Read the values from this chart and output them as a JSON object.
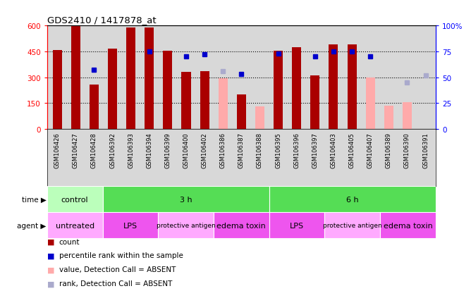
{
  "title": "GDS2410 / 1417878_at",
  "samples": [
    "GSM106426",
    "GSM106427",
    "GSM106428",
    "GSM106392",
    "GSM106393",
    "GSM106394",
    "GSM106399",
    "GSM106400",
    "GSM106402",
    "GSM106386",
    "GSM106387",
    "GSM106388",
    "GSM106395",
    "GSM106396",
    "GSM106397",
    "GSM106403",
    "GSM106405",
    "GSM106407",
    "GSM106389",
    "GSM106390",
    "GSM106391"
  ],
  "bar_values": [
    460,
    595,
    260,
    465,
    590,
    590,
    455,
    330,
    335,
    null,
    200,
    null,
    455,
    475,
    310,
    490,
    490,
    null,
    null,
    null,
    null
  ],
  "bar_absent": [
    null,
    null,
    null,
    null,
    null,
    null,
    null,
    null,
    null,
    295,
    null,
    130,
    null,
    null,
    null,
    null,
    null,
    300,
    135,
    155,
    null
  ],
  "rank_present": [
    null,
    null,
    57,
    null,
    null,
    75,
    null,
    70,
    72,
    null,
    53,
    null,
    73,
    null,
    70,
    75,
    75,
    70,
    null,
    null,
    null
  ],
  "rank_absent": [
    null,
    null,
    null,
    null,
    null,
    null,
    null,
    null,
    null,
    56,
    null,
    null,
    null,
    null,
    null,
    null,
    null,
    null,
    null,
    45,
    52
  ],
  "ylim": [
    0,
    600
  ],
  "yticks": [
    0,
    150,
    300,
    450,
    600
  ],
  "ytick_labels": [
    "0",
    "150",
    "300",
    "450",
    "600"
  ],
  "y2lim": [
    0,
    100
  ],
  "y2ticks": [
    0,
    25,
    50,
    75,
    100
  ],
  "y2tick_labels": [
    "0",
    "25",
    "50",
    "75",
    "100%"
  ],
  "color_bar_present": "#aa0000",
  "color_bar_absent": "#ffaaaa",
  "color_rank_present": "#0000cc",
  "color_rank_absent": "#aaaacc",
  "time_groups": [
    {
      "label": "control",
      "start": 0,
      "end": 3,
      "color": "#bbffbb"
    },
    {
      "label": "3 h",
      "start": 3,
      "end": 12,
      "color": "#55dd55"
    },
    {
      "label": "6 h",
      "start": 12,
      "end": 21,
      "color": "#55dd55"
    }
  ],
  "agent_groups": [
    {
      "label": "untreated",
      "start": 0,
      "end": 3,
      "color": "#ffaaff"
    },
    {
      "label": "LPS",
      "start": 3,
      "end": 6,
      "color": "#ee55ee"
    },
    {
      "label": "protective antigen",
      "start": 6,
      "end": 9,
      "color": "#ffaaff"
    },
    {
      "label": "edema toxin",
      "start": 9,
      "end": 12,
      "color": "#ee55ee"
    },
    {
      "label": "LPS",
      "start": 12,
      "end": 15,
      "color": "#ee55ee"
    },
    {
      "label": "protective antigen",
      "start": 15,
      "end": 18,
      "color": "#ffaaff"
    },
    {
      "label": "edema toxin",
      "start": 18,
      "end": 21,
      "color": "#ee55ee"
    }
  ],
  "bg_color": "#d8d8d8",
  "bar_width": 0.5,
  "legend": [
    {
      "color": "#aa0000",
      "label": "count"
    },
    {
      "color": "#0000cc",
      "label": "percentile rank within the sample"
    },
    {
      "color": "#ffaaaa",
      "label": "value, Detection Call = ABSENT"
    },
    {
      "color": "#aaaacc",
      "label": "rank, Detection Call = ABSENT"
    }
  ]
}
